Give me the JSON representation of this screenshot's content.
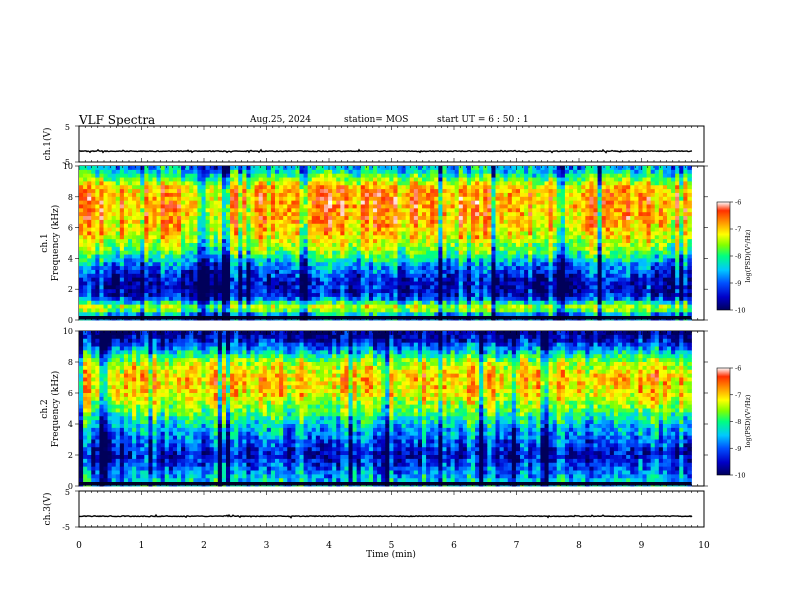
{
  "header": {
    "title": "VLF Spectra",
    "date": "Aug.25, 2024",
    "station": "station= MOS",
    "start": "start  UT =   6 : 50 : 1"
  },
  "colors": {
    "spectrogram_scale": [
      "#00005a",
      "#0000c8",
      "#0050ff",
      "#00c8ff",
      "#00ff80",
      "#80ff00",
      "#ffff00",
      "#ffa000",
      "#ff3000",
      "#ffffff"
    ]
  },
  "chart_data": [
    {
      "type": "line",
      "panel": "ch1-waveform",
      "ylabel": "ch.1(V)",
      "ylim": [
        -5,
        5
      ],
      "yticks": [
        "5",
        "-5"
      ],
      "xlim": [
        0,
        10
      ],
      "baseline_value": -2
    },
    {
      "type": "heatmap",
      "panel": "ch1-spectrogram",
      "ylabel_channel": "ch.1",
      "ylabel": "Frequency (kHz)",
      "ylim": [
        0,
        10
      ],
      "yticks": [
        "0",
        "2",
        "4",
        "6",
        "8",
        "10"
      ],
      "x_end": 9.8,
      "colorbar": {
        "label": "log(PSD)(V²/Hz)",
        "range": [
          -10,
          -6
        ],
        "ticks": [
          "-6",
          "-7",
          "-8",
          "-9",
          "-10"
        ]
      },
      "band_profile": [
        {
          "freq_khz": 0.3,
          "log_psd": -8.8
        },
        {
          "freq_khz": 0.8,
          "log_psd": -7.3
        },
        {
          "freq_khz": 1.5,
          "log_psd": -9.4
        },
        {
          "freq_khz": 2.5,
          "log_psd": -9.5
        },
        {
          "freq_khz": 3.5,
          "log_psd": -8.9
        },
        {
          "freq_khz": 4.5,
          "log_psd": -7.8
        },
        {
          "freq_khz": 5.5,
          "log_psd": -7.2
        },
        {
          "freq_khz": 6.5,
          "log_psd": -6.9
        },
        {
          "freq_khz": 7.5,
          "log_psd": -6.8
        },
        {
          "freq_khz": 8.5,
          "log_psd": -6.9
        },
        {
          "freq_khz": 9.3,
          "log_psd": -8.0
        },
        {
          "freq_khz": 9.8,
          "log_psd": -8.6
        }
      ]
    },
    {
      "type": "heatmap",
      "panel": "ch2-spectrogram",
      "ylabel_channel": "ch.2",
      "ylabel": "Frequency (kHz)",
      "ylim": [
        0,
        10
      ],
      "yticks": [
        "0",
        "2",
        "4",
        "6",
        "8",
        "10"
      ],
      "x_end": 9.8,
      "colorbar": {
        "label": "log(PSD)(V²/Hz)",
        "range": [
          -10,
          -6
        ],
        "ticks": [
          "-6",
          "-7",
          "-8",
          "-9",
          "-10"
        ]
      },
      "band_profile": [
        {
          "freq_khz": 0.3,
          "log_psd": -8.5
        },
        {
          "freq_khz": 1.0,
          "log_psd": -9.0
        },
        {
          "freq_khz": 2.0,
          "log_psd": -9.5
        },
        {
          "freq_khz": 3.0,
          "log_psd": -9.0
        },
        {
          "freq_khz": 4.0,
          "log_psd": -8.5
        },
        {
          "freq_khz": 5.0,
          "log_psd": -7.8
        },
        {
          "freq_khz": 6.0,
          "log_psd": -7.2
        },
        {
          "freq_khz": 7.0,
          "log_psd": -7.0
        },
        {
          "freq_khz": 8.0,
          "log_psd": -7.6
        },
        {
          "freq_khz": 8.7,
          "log_psd": -8.6
        },
        {
          "freq_khz": 9.4,
          "log_psd": -9.5
        },
        {
          "freq_khz": 9.9,
          "log_psd": -9.8
        }
      ]
    },
    {
      "type": "line",
      "panel": "ch3-waveform",
      "ylabel": "ch.3(V)",
      "ylim": [
        -5,
        5
      ],
      "yticks": [
        "5",
        "-5"
      ],
      "xlim": [
        0,
        10
      ],
      "baseline_value": -2
    }
  ],
  "x_axis": {
    "label": "Time (min)",
    "ticks": [
      "0",
      "1",
      "2",
      "3",
      "4",
      "5",
      "6",
      "7",
      "8",
      "9",
      "10"
    ],
    "range": [
      0,
      10
    ]
  }
}
